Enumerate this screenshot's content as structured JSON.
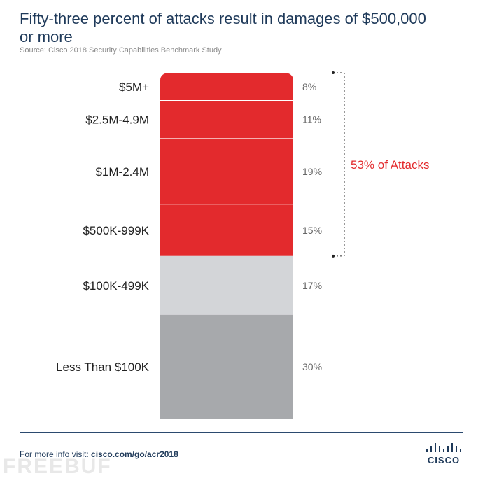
{
  "header": {
    "title": "Fifty-three percent of attacks result in damages of $500,000 or more",
    "source": "Source: Cisco 2018 Security Capabilities Benchmark Study"
  },
  "chart_data": {
    "type": "bar",
    "orientation": "stacked-vertical",
    "title": "Fifty-three percent of attacks result in damages of $500,000 or more",
    "categories": [
      "$5M+",
      "$2.5M-4.9M",
      "$1M-2.4M",
      "$500K-999K",
      "$100K-499K",
      "Less Than $100K"
    ],
    "values": [
      8,
      11,
      19,
      15,
      17,
      30
    ],
    "value_labels": [
      "8%",
      "11%",
      "19%",
      "15%",
      "17%",
      "30%"
    ],
    "unit": "%",
    "colors": [
      "#e32a2d",
      "#e32a2d",
      "#e32a2d",
      "#e32a2d",
      "#d3d5d8",
      "#a7a9ac"
    ],
    "annotation": {
      "text": "53% of Attacks",
      "spans_categories": [
        "$5M+",
        "$2.5M-4.9M",
        "$1M-2.4M",
        "$500K-999K"
      ],
      "color": "#e32a2d"
    }
  },
  "footer": {
    "prefix": "For more info visit: ",
    "link": "cisco.com/go/acr2018",
    "logo_text": "CISCO",
    "watermark": "FREEBUF"
  }
}
